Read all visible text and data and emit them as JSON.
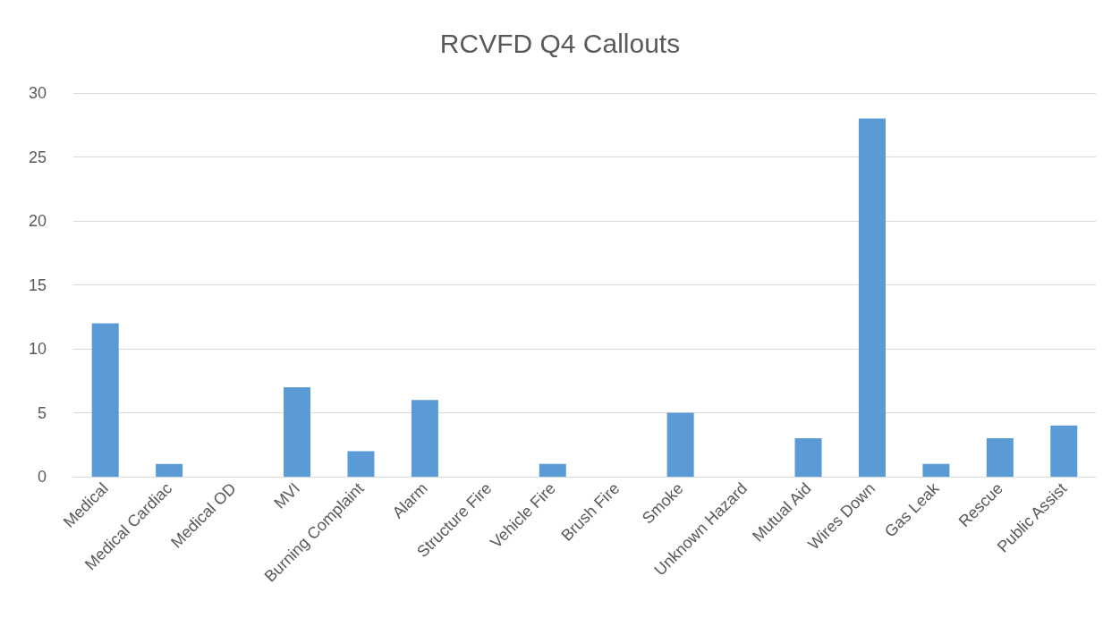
{
  "chart_data": {
    "type": "bar",
    "title": "RCVFD Q4 Callouts",
    "categories": [
      "Medical",
      "Medical Cardiac",
      "Medical OD",
      "MVI",
      "Burning Complaint",
      "Alarm",
      "Structure Fire",
      "Vehicle Fire",
      "Brush Fire",
      "Smoke",
      "Unknown Hazard",
      "Mutual Aid",
      "Wires Down",
      "Gas Leak",
      "Rescue",
      "Public Assist"
    ],
    "values": [
      12,
      1,
      0,
      7,
      2,
      6,
      0,
      1,
      0,
      5,
      0,
      3,
      28,
      1,
      3,
      4
    ],
    "color": "#5b9bd5",
    "ylim": [
      0,
      30
    ],
    "yticks": [
      0,
      5,
      10,
      15,
      20,
      25,
      30
    ],
    "grid": "y"
  }
}
